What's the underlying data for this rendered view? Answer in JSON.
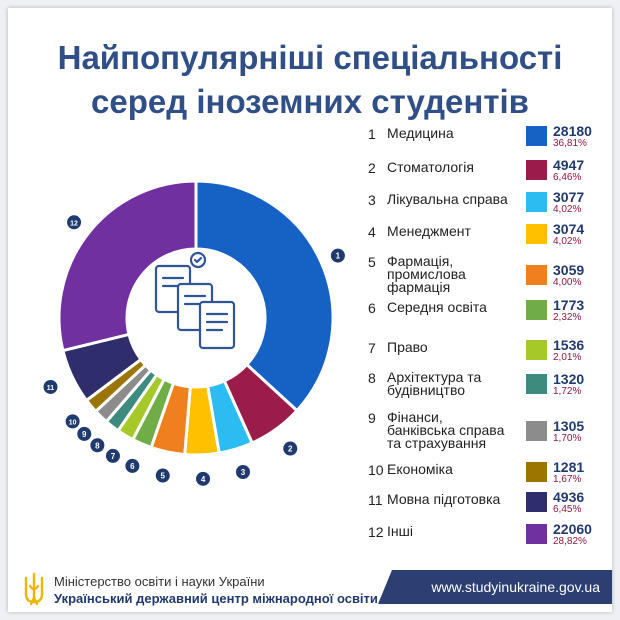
{
  "title_line1": "Найпопулярніші спеціальності",
  "title_line2": "серед іноземних студентів",
  "colors": {
    "title": "#2f4f86",
    "value": "#1f3a6e",
    "percent": "#8b1a3a",
    "footer_bar": "#2c3f73",
    "icon": "#2f5597"
  },
  "chart_data": {
    "type": "pie",
    "style": "donut",
    "slices": [
      {
        "n": "1",
        "label": "Медицина",
        "value": 28180,
        "pct": "36,81%",
        "color": "#1562c4"
      },
      {
        "n": "2",
        "label": "Стоматологія",
        "value": 4947,
        "pct": "6,46%",
        "color": "#9b1b4b"
      },
      {
        "n": "3",
        "label": "Лікувальна справа",
        "value": 3077,
        "pct": "4,02%",
        "color": "#2bbdf1"
      },
      {
        "n": "4",
        "label": "Менеджмент",
        "value": 3074,
        "pct": "4,02%",
        "color": "#ffc000"
      },
      {
        "n": "5",
        "label": "Фармація, промислова фармація",
        "value": 3059,
        "pct": "4,00%",
        "color": "#f07f1e"
      },
      {
        "n": "6",
        "label": "Середня освіта",
        "value": 1773,
        "pct": "2,32%",
        "color": "#70ad47"
      },
      {
        "n": "7",
        "label": "Право",
        "value": 1536,
        "pct": "2,01%",
        "color": "#a5c928"
      },
      {
        "n": "8",
        "label": "Архітектура та будівництво",
        "value": 1320,
        "pct": "1,72%",
        "color": "#3d8a7e"
      },
      {
        "n": "9",
        "label": "Фінанси, банківська справа та страхування",
        "value": 1305,
        "pct": "1,70%",
        "color": "#8c8c8c"
      },
      {
        "n": "10",
        "label": "Економіка",
        "value": 1281,
        "pct": "1,67%",
        "color": "#9c7400"
      },
      {
        "n": "11",
        "label": "Мовна підготовка",
        "value": 4936,
        "pct": "6,45%",
        "color": "#2f2d6b"
      },
      {
        "n": "12",
        "label": "Інші",
        "value": 22060,
        "pct": "28,82%",
        "color": "#7030a0"
      }
    ]
  },
  "legend_lines": {
    "5": [
      "Фармація,",
      "промислова",
      "фармація"
    ],
    "8": [
      "Архітектура та",
      "будівництво"
    ],
    "9": [
      "Фінанси,",
      "банківська справа",
      "та страхування"
    ]
  },
  "footer": {
    "ministry": "Міністерство освіти і науки України",
    "center": "Український державний центр міжнародної освіти",
    "site": "www.studyinukraine.gov.ua"
  }
}
